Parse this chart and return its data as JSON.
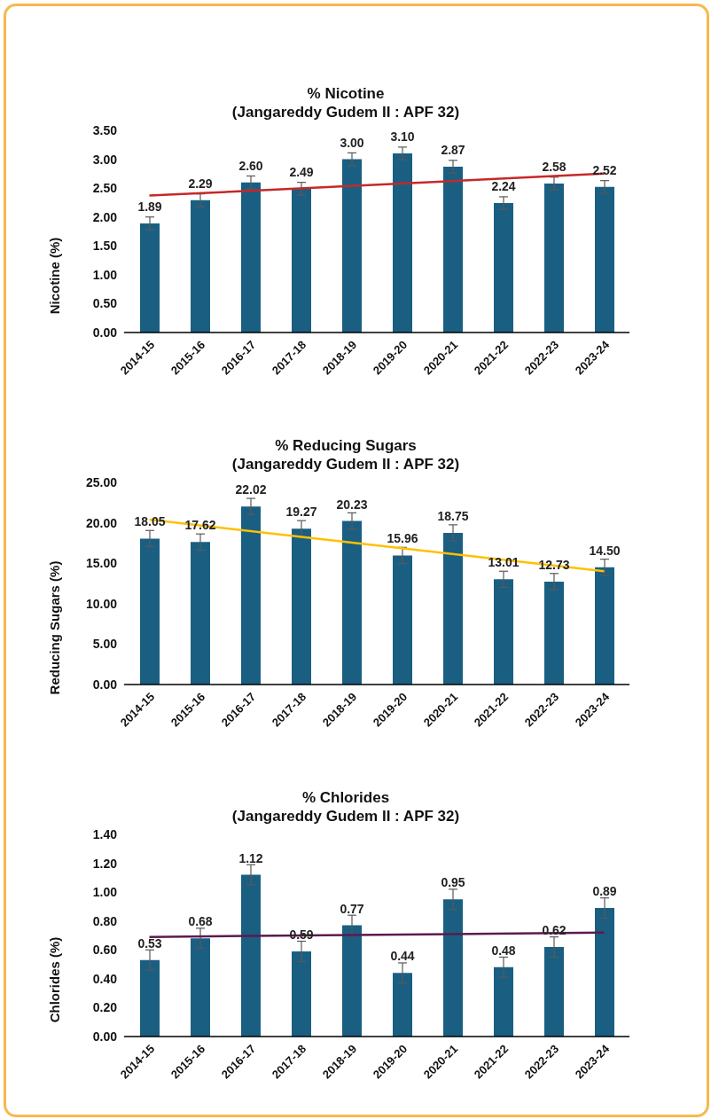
{
  "chart_data": [
    {
      "type": "bar",
      "title": "% Nicotine",
      "subtitle": "(Jangareddy Gudem II : APF 32)",
      "ylabel": "Nicotine (%)",
      "categories": [
        "2014-15",
        "2015-16",
        "2016-17",
        "2017-18",
        "2018-19",
        "2019-20",
        "2020-21",
        "2021-22",
        "2022-23",
        "2023-24"
      ],
      "series": [
        {
          "color": "#1a5f82",
          "values": [
            1.89,
            2.29,
            2.6,
            2.49,
            3.0,
            3.1,
            2.87,
            2.24,
            2.58,
            2.52
          ],
          "errors": [
            0.11,
            0.11,
            0.11,
            0.11,
            0.11,
            0.11,
            0.11,
            0.11,
            0.11,
            0.11
          ],
          "value_labels": [
            "1.89",
            "2.29",
            "2.60",
            "2.49",
            "3.00",
            "3.10",
            "2.87",
            "2.24",
            "2.58",
            "2.52"
          ]
        },
        {
          "type": "line",
          "color": "#c62828",
          "x": [
            "2014-15",
            "2023-24"
          ],
          "values": [
            2.37,
            2.75
          ]
        }
      ],
      "ylim": [
        0,
        3.5
      ],
      "yticks": [
        {
          "value": 0,
          "label": "0.00"
        },
        {
          "value": 0.5,
          "label": "0.50"
        },
        {
          "value": 1,
          "label": "1.00"
        },
        {
          "value": 1.5,
          "label": "1.50"
        },
        {
          "value": 2,
          "label": "2.00"
        },
        {
          "value": 2.5,
          "label": "2.50"
        },
        {
          "value": 3,
          "label": "3.00"
        },
        {
          "value": 3.5,
          "label": "3.50"
        }
      ],
      "grid": false,
      "legend": false
    },
    {
      "type": "bar",
      "title": "% Reducing Sugars",
      "subtitle": "(Jangareddy Gudem II : APF 32)",
      "ylabel": "Reducing Sugars (%)",
      "categories": [
        "2014-15",
        "2015-16",
        "2016-17",
        "2017-18",
        "2018-19",
        "2019-20",
        "2020-21",
        "2021-22",
        "2022-23",
        "2023-24"
      ],
      "series": [
        {
          "color": "#1a5f82",
          "values": [
            18.05,
            17.62,
            22.02,
            19.27,
            20.23,
            15.96,
            18.75,
            13.01,
            12.73,
            14.5
          ],
          "errors": [
            1.0,
            1.0,
            1.0,
            1.0,
            1.0,
            1.0,
            1.0,
            1.0,
            1.0,
            1.0
          ],
          "value_labels": [
            "18.05",
            "17.62",
            "22.02",
            "19.27",
            "20.23",
            "15.96",
            "18.75",
            "13.01",
            "12.73",
            "14.50"
          ]
        },
        {
          "type": "line",
          "color": "#ffc000",
          "x": [
            "2014-15",
            "2023-24"
          ],
          "values": [
            20.4,
            14.0
          ]
        }
      ],
      "ylim": [
        0,
        25
      ],
      "yticks": [
        {
          "value": 0,
          "label": "0.00"
        },
        {
          "value": 5,
          "label": "5.00"
        },
        {
          "value": 10,
          "label": "10.00"
        },
        {
          "value": 15,
          "label": "15.00"
        },
        {
          "value": 20,
          "label": "20.00"
        },
        {
          "value": 25,
          "label": "25.00"
        }
      ],
      "grid": false,
      "legend": false
    },
    {
      "type": "bar",
      "title": "% Chlorides",
      "subtitle": "(Jangareddy Gudem II : APF 32)",
      "ylabel": "Chlorides (%)",
      "categories": [
        "2014-15",
        "2015-16",
        "2016-17",
        "2017-18",
        "2018-19",
        "2019-20",
        "2020-21",
        "2021-22",
        "2022-23",
        "2023-24"
      ],
      "series": [
        {
          "color": "#1a5f82",
          "values": [
            0.53,
            0.68,
            1.12,
            0.59,
            0.77,
            0.44,
            0.95,
            0.48,
            0.62,
            0.89
          ],
          "errors": [
            0.07,
            0.07,
            0.07,
            0.07,
            0.07,
            0.07,
            0.07,
            0.07,
            0.07,
            0.07
          ],
          "value_labels": [
            "0.53",
            "0.68",
            "1.12",
            "0.59",
            "0.77",
            "0.44",
            "0.95",
            "0.48",
            "0.62",
            "0.89"
          ]
        },
        {
          "type": "line",
          "color": "#5b1a50",
          "x": [
            "2014-15",
            "2023-24"
          ],
          "values": [
            0.69,
            0.72
          ]
        }
      ],
      "ylim": [
        0,
        1.4
      ],
      "yticks": [
        {
          "value": 0,
          "label": "0.00"
        },
        {
          "value": 0.2,
          "label": "0.20"
        },
        {
          "value": 0.4,
          "label": "0.40"
        },
        {
          "value": 0.6,
          "label": "0.60"
        },
        {
          "value": 0.8,
          "label": "0.80"
        },
        {
          "value": 1,
          "label": "1.00"
        },
        {
          "value": 1.2,
          "label": "1.20"
        },
        {
          "value": 1.4,
          "label": "1.40"
        }
      ],
      "grid": false,
      "legend": false
    }
  ]
}
